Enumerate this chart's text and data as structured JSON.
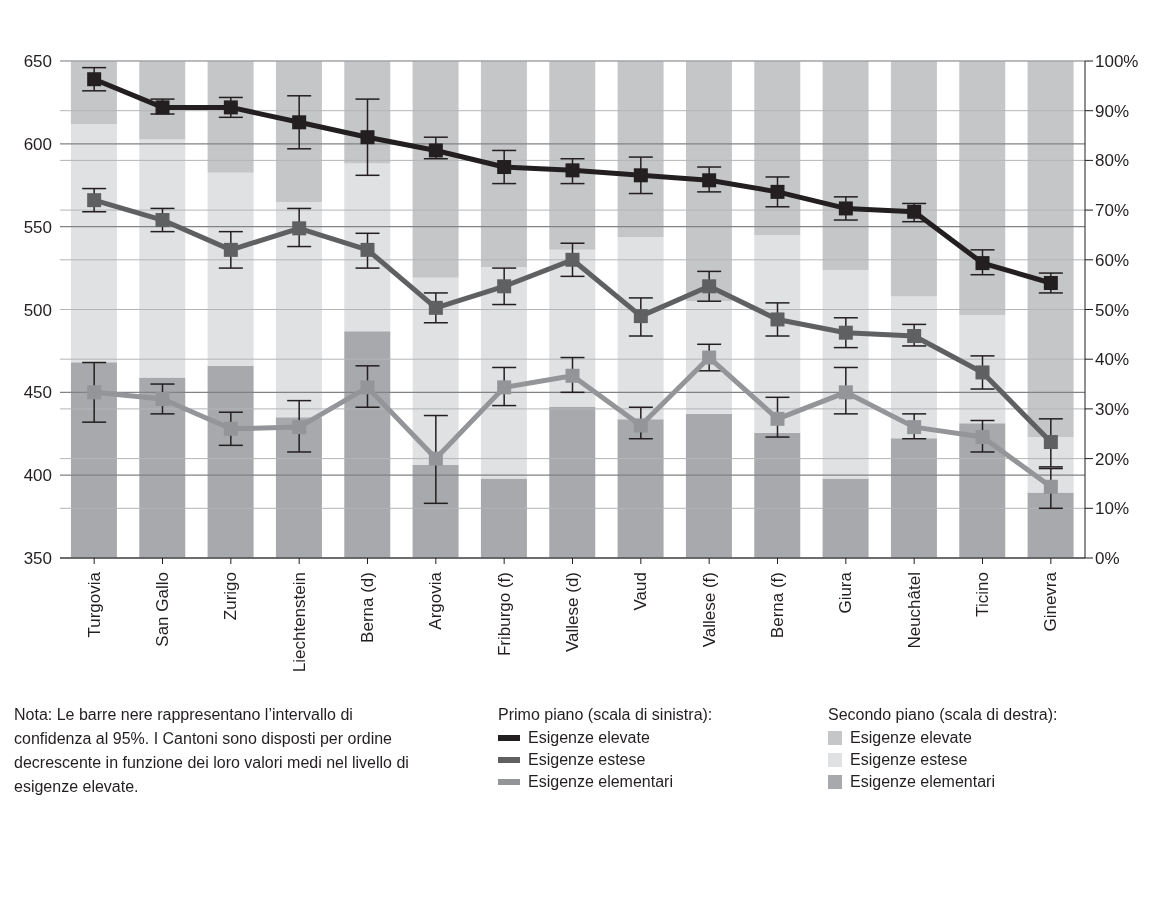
{
  "chart_data": {
    "type": "bar",
    "categories": [
      "Turgovia",
      "San Gallo",
      "Zurigo",
      "Liechtenstein",
      "Berna (d)",
      "Argovia",
      "Friburgo (f)",
      "Vallese (d)",
      "Vaud",
      "Vallese (f)",
      "Berna (f)",
      "Giura",
      "Neuchâtel",
      "Ticino",
      "Ginevra"
    ],
    "stacked": true,
    "series": [
      {
        "name": "Esigenze elementari",
        "axis": "y2",
        "color": "#a7a9ac",
        "values": [
          39.4,
          36.3,
          38.7,
          28.3,
          45.6,
          18.7,
          16,
          30.4,
          27.9,
          29,
          25.2,
          16,
          24.1,
          27.1,
          13.2
        ]
      },
      {
        "name": "Esigenze estese",
        "axis": "y2",
        "color": "#e0e1e3",
        "values": [
          47.9,
          47.9,
          38.8,
          43.3,
          33.8,
          37.7,
          42.5,
          31.6,
          36.7,
          22.7,
          39.8,
          41.9,
          28.5,
          21.8,
          11.1
        ]
      },
      {
        "name": "Esigenze elevate",
        "axis": "y2",
        "color": "#c5c6c8",
        "values": [
          12.7,
          15.8,
          22.5,
          28.4,
          20.6,
          43.6,
          41.5,
          38,
          35.4,
          48.3,
          35,
          42.1,
          47.4,
          51.1,
          75.7
        ]
      },
      {
        "name": "Esigenze elevate",
        "type": "line",
        "axis": "y",
        "color": "#231f20",
        "values": [
          639,
          622,
          622,
          613,
          604,
          596,
          586,
          584,
          581,
          578,
          571,
          561,
          559,
          528,
          516
        ],
        "errors": [
          [
            632,
            646
          ],
          [
            618,
            627
          ],
          [
            616,
            628
          ],
          [
            597,
            629
          ],
          [
            581,
            627
          ],
          [
            591,
            604
          ],
          [
            576,
            596
          ],
          [
            576,
            591
          ],
          [
            570,
            592
          ],
          [
            571,
            586
          ],
          [
            562,
            580
          ],
          [
            554,
            568
          ],
          [
            553,
            564
          ],
          [
            521,
            536
          ],
          [
            510,
            522
          ]
        ]
      },
      {
        "name": "Esigenze estese",
        "type": "line",
        "axis": "y",
        "color": "#5f6062",
        "values": [
          566,
          554,
          536,
          549,
          536,
          501,
          514,
          530,
          496,
          514,
          494,
          486,
          484,
          462,
          420
        ],
        "errors": [
          [
            559,
            573
          ],
          [
            547,
            561
          ],
          [
            525,
            547
          ],
          [
            538,
            561
          ],
          [
            525,
            546
          ],
          [
            492,
            510
          ],
          [
            503,
            525
          ],
          [
            520,
            540
          ],
          [
            484,
            507
          ],
          [
            505,
            523
          ],
          [
            484,
            504
          ],
          [
            477,
            495
          ],
          [
            478,
            491
          ],
          [
            452,
            472
          ],
          [
            405,
            434
          ]
        ]
      },
      {
        "name": "Esigenze elementari",
        "type": "line",
        "axis": "y",
        "color": "#939598",
        "values": [
          450,
          446,
          428,
          429,
          453,
          410,
          453,
          460,
          430,
          471,
          434,
          450,
          429,
          423,
          393
        ],
        "errors": [
          [
            432,
            468
          ],
          [
            437,
            455
          ],
          [
            418,
            438
          ],
          [
            414,
            445
          ],
          [
            441,
            466
          ],
          [
            383,
            436
          ],
          [
            442,
            465
          ],
          [
            450,
            471
          ],
          [
            422,
            441
          ],
          [
            463,
            479
          ],
          [
            423,
            447
          ],
          [
            437,
            465
          ],
          [
            422,
            437
          ],
          [
            414,
            433
          ],
          [
            380,
            404
          ]
        ]
      }
    ],
    "ylim": [
      350,
      650
    ],
    "yticks": [
      350,
      400,
      450,
      500,
      550,
      600,
      650
    ],
    "y2lim": [
      0,
      100
    ],
    "y2ticks": [
      {
        "value": 0,
        "label": "0%"
      },
      {
        "value": 10,
        "label": "10%"
      },
      {
        "value": 20,
        "label": "20%"
      },
      {
        "value": 30,
        "label": "30%"
      },
      {
        "value": 40,
        "label": "40%"
      },
      {
        "value": 50,
        "label": "50%"
      },
      {
        "value": 60,
        "label": "60%"
      },
      {
        "value": 70,
        "label": "70%"
      },
      {
        "value": 80,
        "label": "80%"
      },
      {
        "value": 90,
        "label": "90%"
      },
      {
        "value": 100,
        "label": "100%"
      }
    ],
    "grid": "y",
    "marker": "square",
    "legend": "bottom",
    "annotations": [
      "Nota: Le barre nere rappresentano l’intervallo di confidenza al 95%. I Cantoni sono disposti per ordine decrescente in funzione dei loro valori medi nel livello di esigenze elevate.",
      "Primo piano (scala di sinistra):",
      "Secondo piano (scala di destra):"
    ]
  }
}
